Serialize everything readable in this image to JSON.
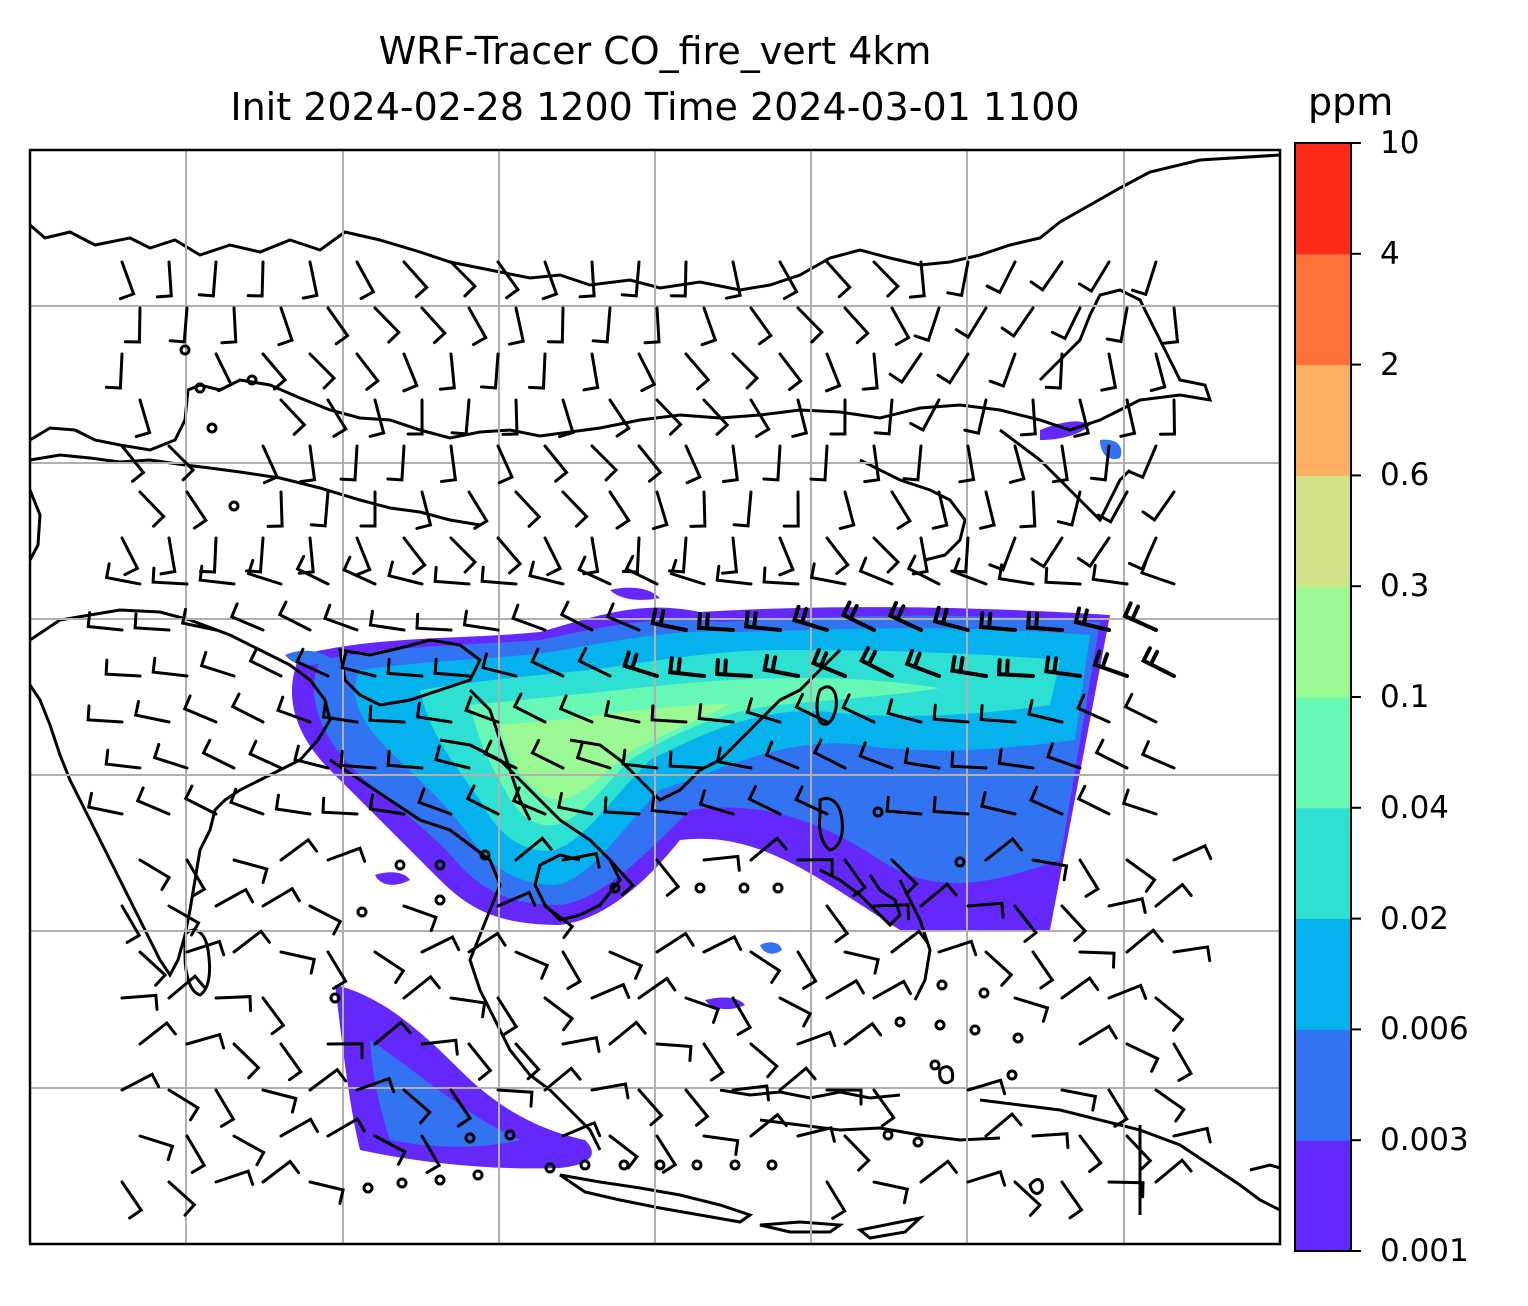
{
  "title": {
    "line1": "WRF-Tracer CO_fire_vert 4km",
    "line2": "Init 2024-02-28 1200 Time 2024-03-01 1100"
  },
  "colorbar": {
    "unit": "ppm",
    "levels": [
      "0.001",
      "0.003",
      "0.006",
      "0.02",
      "0.04",
      "0.1",
      "0.3",
      "0.6",
      "2",
      "4",
      "10"
    ],
    "colors": [
      "#6528fa",
      "#3273f2",
      "#05b2ee",
      "#2edfd3",
      "#68f8b6",
      "#9bf993",
      "#d2e387",
      "#fdb062",
      "#fe713b",
      "#ff2a19"
    ]
  },
  "map": {
    "gridlines": true,
    "gridline_color": "#b0b0b0",
    "coastline_color": "#000000",
    "wind_barbs": true,
    "calm_markers": true
  }
}
